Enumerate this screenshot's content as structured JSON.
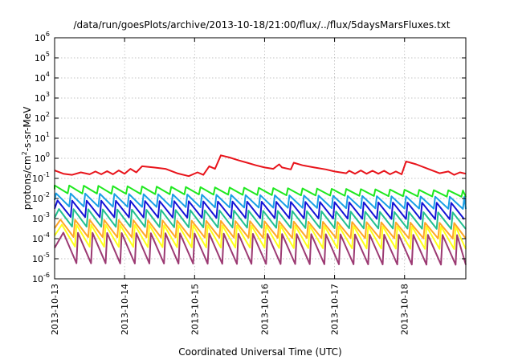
{
  "chart_data": {
    "type": "line",
    "title": "/data/run/goesPlots/archive/2013-10-18/21:00/flux/../flux/5daysMarsFluxes.txt",
    "xlabel": "Coordinated Universal Time (UTC)",
    "ylabel": {
      "prefix": "protons/cm",
      "sup": "2",
      "suffix": "-s-sr-MeV"
    },
    "scale": {
      "x": "time",
      "y": "log"
    },
    "xlim": [
      "2013-10-13T00:00",
      "2013-10-18T21:00"
    ],
    "ylim": [
      1e-06,
      1000000.0
    ],
    "x_ticks": [
      "2013-10-13",
      "2013-10-14",
      "2013-10-15",
      "2013-10-16",
      "2013-10-17",
      "2013-10-18"
    ],
    "y_ticks": [
      {
        "base": "10",
        "exp": "-6",
        "value": 1e-06
      },
      {
        "base": "10",
        "exp": "-5",
        "value": 1e-05
      },
      {
        "base": "10",
        "exp": "-4",
        "value": 0.0001
      },
      {
        "base": "10",
        "exp": "-3",
        "value": 0.001
      },
      {
        "base": "10",
        "exp": "-2",
        "value": 0.01
      },
      {
        "base": "10",
        "exp": "-1",
        "value": 0.1
      },
      {
        "base": "10",
        "exp": "0",
        "value": 1
      },
      {
        "base": "10",
        "exp": "1",
        "value": 10
      },
      {
        "base": "10",
        "exp": "2",
        "value": 100
      },
      {
        "base": "10",
        "exp": "3",
        "value": 1000
      },
      {
        "base": "10",
        "exp": "4",
        "value": 10000
      },
      {
        "base": "10",
        "exp": "5",
        "value": 100000
      },
      {
        "base": "10",
        "exp": "6",
        "value": 1000000
      }
    ],
    "grid": true,
    "legend": "none",
    "series": [
      {
        "color": "#e8141b",
        "points": [
          [
            "2013-10-13T00:00",
            0.25
          ],
          [
            "2013-10-13T03:00",
            0.17
          ],
          [
            "2013-10-13T06:00",
            0.15
          ],
          [
            "2013-10-13T09:00",
            0.2
          ],
          [
            "2013-10-13T12:00",
            0.16
          ],
          [
            "2013-10-13T14:00",
            0.22
          ],
          [
            "2013-10-13T16:00",
            0.16
          ],
          [
            "2013-10-13T18:00",
            0.23
          ],
          [
            "2013-10-13T20:00",
            0.16
          ],
          [
            "2013-10-13T22:00",
            0.25
          ],
          [
            "2013-10-14T00:00",
            0.17
          ],
          [
            "2013-10-14T02:00",
            0.3
          ],
          [
            "2013-10-14T04:00",
            0.2
          ],
          [
            "2013-10-14T06:00",
            0.4
          ],
          [
            "2013-10-14T10:00",
            0.35
          ],
          [
            "2013-10-14T14:00",
            0.3
          ],
          [
            "2013-10-14T18:00",
            0.18
          ],
          [
            "2013-10-14T22:00",
            0.13
          ],
          [
            "2013-10-15T01:00",
            0.2
          ],
          [
            "2013-10-15T03:00",
            0.15
          ],
          [
            "2013-10-15T05:00",
            0.4
          ],
          [
            "2013-10-15T07:00",
            0.3
          ],
          [
            "2013-10-15T09:00",
            1.4
          ],
          [
            "2013-10-15T12:00",
            1.1
          ],
          [
            "2013-10-15T15:00",
            0.8
          ],
          [
            "2013-10-15T18:00",
            0.6
          ],
          [
            "2013-10-15T21:00",
            0.45
          ],
          [
            "2013-10-16T00:00",
            0.35
          ],
          [
            "2013-10-16T03:00",
            0.3
          ],
          [
            "2013-10-16T05:00",
            0.5
          ],
          [
            "2013-10-16T06:00",
            0.35
          ],
          [
            "2013-10-16T09:00",
            0.28
          ],
          [
            "2013-10-16T10:00",
            0.6
          ],
          [
            "2013-10-16T13:00",
            0.45
          ],
          [
            "2013-10-16T17:00",
            0.35
          ],
          [
            "2013-10-16T21:00",
            0.28
          ],
          [
            "2013-10-17T00:00",
            0.22
          ],
          [
            "2013-10-17T04:00",
            0.18
          ],
          [
            "2013-10-17T05:00",
            0.24
          ],
          [
            "2013-10-17T07:00",
            0.17
          ],
          [
            "2013-10-17T09:00",
            0.25
          ],
          [
            "2013-10-17T11:00",
            0.17
          ],
          [
            "2013-10-17T13:00",
            0.24
          ],
          [
            "2013-10-17T15:00",
            0.17
          ],
          [
            "2013-10-17T17:00",
            0.24
          ],
          [
            "2013-10-17T19:00",
            0.16
          ],
          [
            "2013-10-17T21:00",
            0.22
          ],
          [
            "2013-10-17T23:00",
            0.16
          ],
          [
            "2013-10-18T00:30",
            0.7
          ],
          [
            "2013-10-18T04:00",
            0.5
          ],
          [
            "2013-10-18T08:00",
            0.3
          ],
          [
            "2013-10-18T12:00",
            0.18
          ],
          [
            "2013-10-18T15:00",
            0.22
          ],
          [
            "2013-10-18T17:00",
            0.15
          ],
          [
            "2013-10-18T19:00",
            0.2
          ],
          [
            "2013-10-18T21:00",
            0.17
          ]
        ]
      },
      {
        "color": "#1fe81f",
        "pattern": "sawtooth",
        "peak": 0.045,
        "trough": 0.018,
        "period_hours": 5,
        "phase_hours": 0,
        "peak_end": 0.025,
        "trough_end": 0.012
      },
      {
        "color": "#1a9fe6",
        "pattern": "sawtooth",
        "peak": 0.018,
        "trough": 0.004,
        "period_hours": 5,
        "phase_hours": 0.5,
        "peak_end": 0.012,
        "trough_end": 0.003
      },
      {
        "color": "#1414d6",
        "pattern": "sawtooth",
        "peak": 0.008,
        "trough": 0.0012,
        "period_hours": 5,
        "phase_hours": 1,
        "peak_end": 0.006,
        "trough_end": 0.0009
      },
      {
        "color": "#22bf8f",
        "pattern": "sawtooth",
        "peak": 0.003,
        "trough": 0.0004,
        "period_hours": 5,
        "phase_hours": 1.5,
        "peak_end": 0.002,
        "trough_end": 0.0003
      },
      {
        "color": "#ffa726",
        "pattern": "sawtooth",
        "peak": 0.0009,
        "trough": 0.00012,
        "period_hours": 5,
        "phase_hours": 2,
        "peak_end": 0.0006,
        "trough_end": 0.0001
      },
      {
        "color": "#ffff1a",
        "pattern": "sawtooth",
        "peak": 0.0005,
        "trough": 4e-05,
        "period_hours": 5,
        "phase_hours": 2.5,
        "peak_end": 0.0004,
        "trough_end": 3e-05
      },
      {
        "color": "#9c3a73",
        "pattern": "sawtooth",
        "peak": 0.0002,
        "trough": 6e-06,
        "period_hours": 5,
        "phase_hours": 3,
        "peak_end": 0.00015,
        "trough_end": 5e-06
      }
    ]
  }
}
